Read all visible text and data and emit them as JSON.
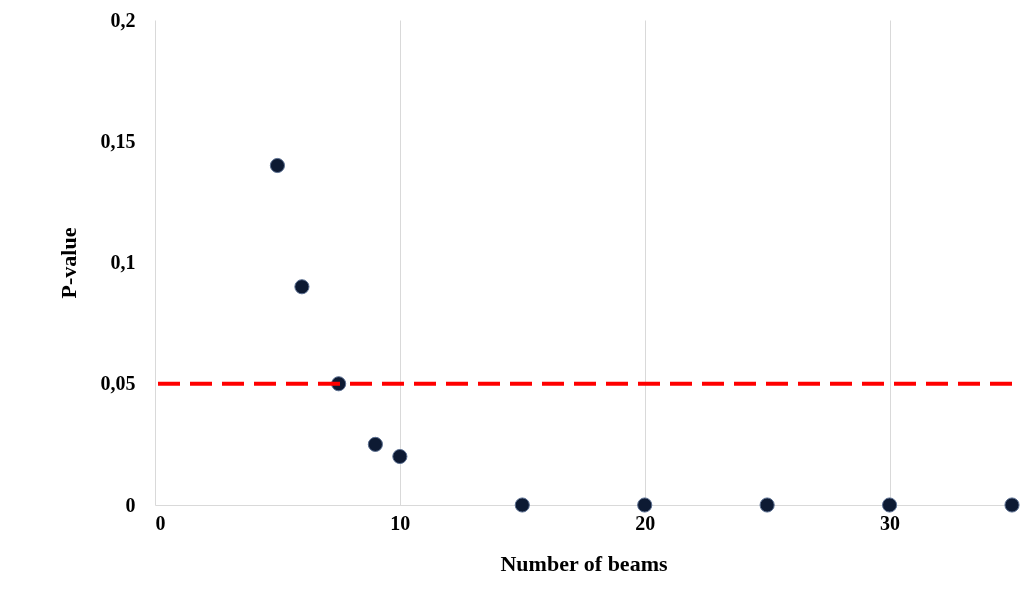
{
  "chart_data": {
    "type": "scatter",
    "xlabel": "Number of beams",
    "ylabel": "P-value",
    "x": [
      5,
      6,
      7.5,
      9,
      10,
      15,
      20,
      25,
      30,
      35
    ],
    "series": [
      {
        "color": "#0d1a33",
        "values": [
          0.14,
          0.09,
          0.05,
          0.025,
          0.02,
          0,
          0,
          0,
          0,
          0
        ]
      }
    ],
    "xlim": [
      0,
      35
    ],
    "xticks": [
      0,
      10,
      20,
      30
    ],
    "ylim": [
      0,
      0.2
    ],
    "yticks": [
      0,
      {
        "value": 0.05,
        "label": "0,05"
      },
      {
        "value": 0.1,
        "label": "0,1"
      },
      {
        "value": 0.15,
        "label": "0,15"
      },
      {
        "value": 0.2,
        "label": "0,2"
      }
    ],
    "ref_lines": [
      {
        "axis": "y",
        "value": 0.05,
        "color": "#ff0000",
        "line_style": "dashed"
      }
    ],
    "grid": "x",
    "marker": "circle"
  }
}
